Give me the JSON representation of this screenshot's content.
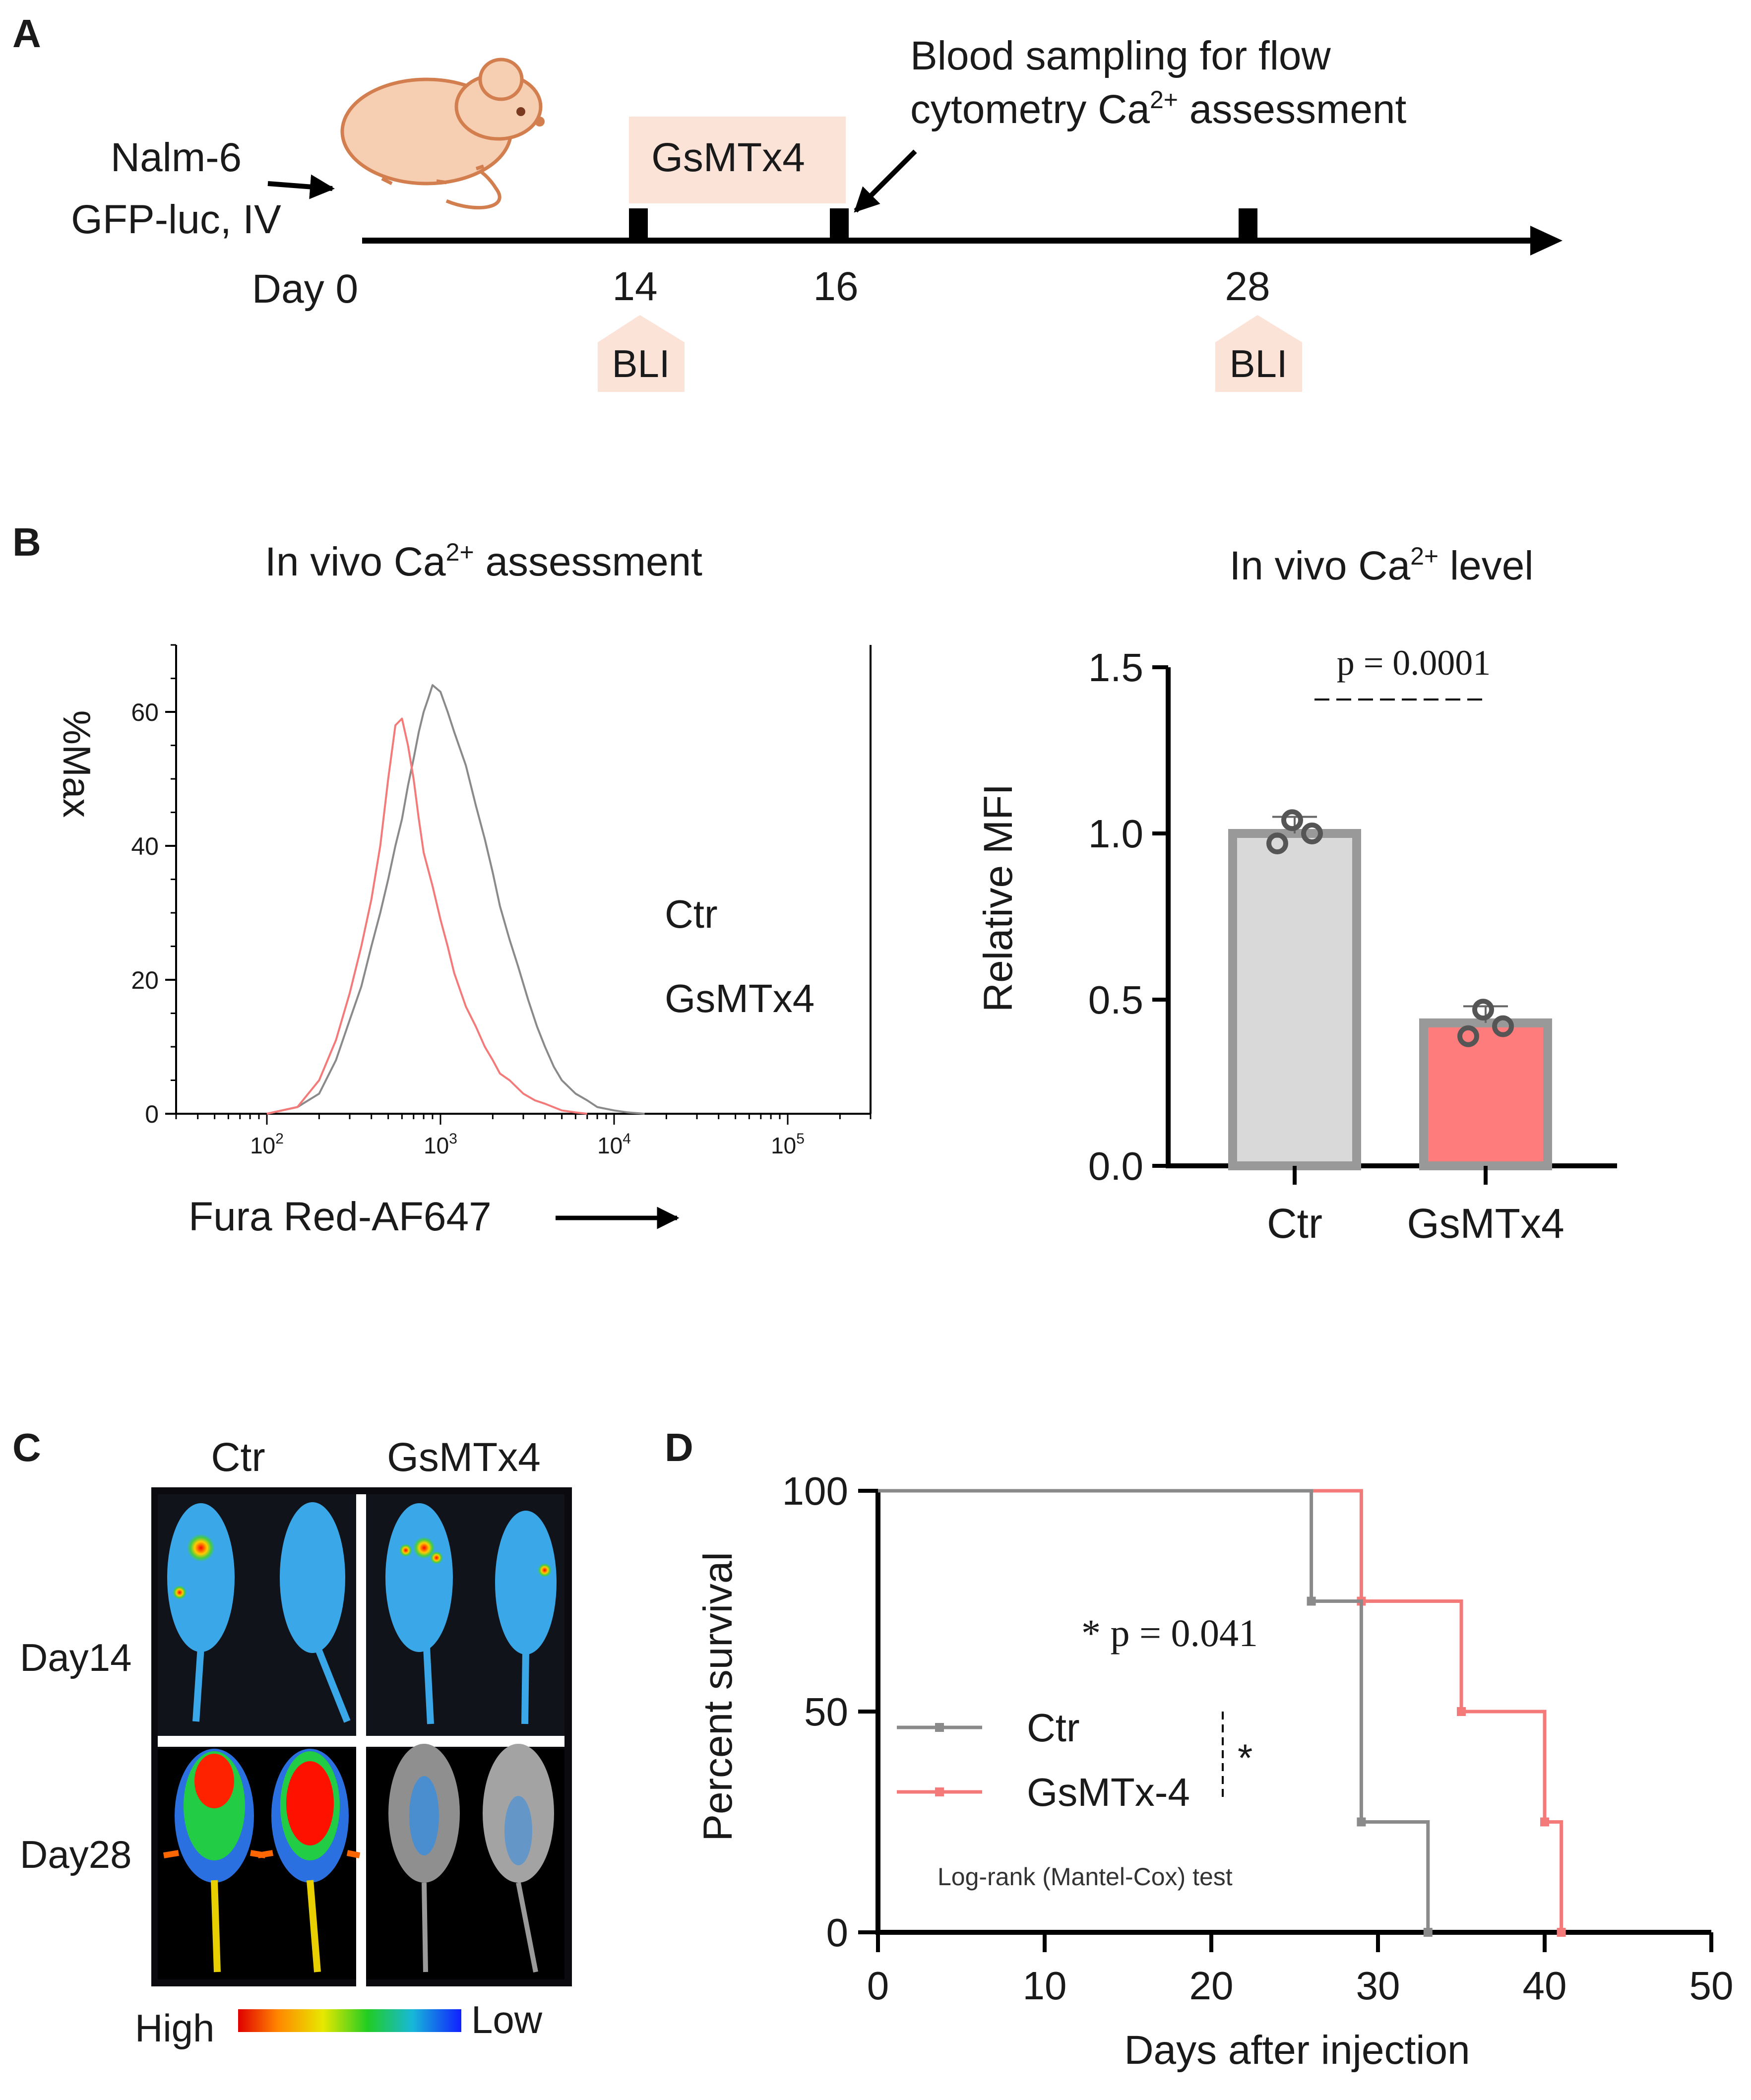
{
  "colors": {
    "ctr": "#8a8a8a",
    "gsmtx4": "#f47a7a",
    "ctr_bar_fill": "#d9d9d9",
    "gsmtx4_bar_fill": "#ff7c7c",
    "bar_edge": "#999999",
    "highlight": "#fbe3d8",
    "axis": "#000000"
  },
  "panelA": {
    "label": "A",
    "cells_line1": "Nalm-6",
    "cells_line2": "GFP-luc, IV",
    "treatment": "GsMTx4",
    "sampling_line1": "Blood sampling for flow",
    "sampling_line2_pre": "cytometry Ca",
    "sampling_line2_sup": "2+",
    "sampling_line2_post": " assessment",
    "days": [
      "Day 0",
      "14",
      "16",
      "28"
    ],
    "imaging_label": "BLI",
    "icons": [
      "mouse-icon",
      "arrow-icon"
    ]
  },
  "panelB": {
    "label": "B",
    "chart_data": [
      {
        "type": "line",
        "title_pre": "In vivo Ca",
        "title_sup": "2+",
        "title_post": " assessment",
        "xlabel": "Fura Red-AF647",
        "ylabel": "%Max",
        "x_scale": "log",
        "xlim": [
          30,
          300000
        ],
        "ylim": [
          0,
          70
        ],
        "x_ticks": [
          {
            "value": 100,
            "base": "10",
            "exp": "2"
          },
          {
            "value": 1000,
            "base": "10",
            "exp": "3"
          },
          {
            "value": 10000,
            "base": "10",
            "exp": "4"
          },
          {
            "value": 100000,
            "base": "10",
            "exp": "5"
          }
        ],
        "y_ticks": [
          0,
          20,
          40,
          60
        ],
        "legend_placement": "right",
        "series": [
          {
            "name": "Ctr",
            "x": [
              100,
              150,
              200,
              250,
              300,
              350,
              400,
              450,
              500,
              550,
              600,
              650,
              700,
              750,
              800,
              850,
              900,
              1000,
              1100,
              1200,
              1400,
              1600,
              1800,
              2000,
              2200,
              2500,
              2800,
              3200,
              3600,
              4000,
              4500,
              5000,
              6000,
              7000,
              8000,
              10000,
              12000,
              15000
            ],
            "y": [
              0,
              1,
              3,
              8,
              14,
              19,
              25,
              30,
              35,
              40,
              44,
              49,
              53,
              57,
              60,
              62,
              64,
              63,
              60,
              57,
              52,
              46,
              41,
              36,
              31,
              26,
              22,
              17,
              13,
              10,
              7,
              5,
              3,
              2,
              1,
              0.5,
              0.2,
              0
            ]
          },
          {
            "name": "GsMTx4",
            "x": [
              100,
              150,
              200,
              250,
              300,
              350,
              400,
              450,
              500,
              550,
              600,
              650,
              700,
              750,
              800,
              900,
              1000,
              1100,
              1200,
              1400,
              1600,
              1800,
              2000,
              2200,
              2500,
              3000,
              3500,
              4000,
              5000,
              6000,
              7000
            ],
            "y": [
              0,
              1,
              5,
              11,
              18,
              25,
              32,
              40,
              50,
              58,
              59,
              55,
              50,
              44,
              39,
              34,
              29,
              25,
              21,
              16,
              13,
              10,
              8,
              6,
              5,
              3,
              2,
              1.5,
              0.5,
              0.2,
              0
            ]
          }
        ]
      },
      {
        "type": "bar",
        "title_pre": "In vivo Ca",
        "title_sup": "2+",
        "title_post": " level",
        "xlabel": "",
        "ylabel": "Relative MFI",
        "categories": [
          "Ctr",
          "GsMTx4"
        ],
        "values": [
          1.0,
          0.43
        ],
        "errors": [
          0.05,
          0.05
        ],
        "points": [
          [
            1.04,
            0.97,
            1.0
          ],
          [
            0.47,
            0.39,
            0.42
          ]
        ],
        "ylim": [
          0,
          1.5
        ],
        "y_ticks": [
          "0.0",
          "0.5",
          "1.0",
          "1.5"
        ],
        "annotation": "p = 0.0001"
      }
    ]
  },
  "panelC": {
    "label": "C",
    "columns": [
      "Ctr",
      "GsMTx4"
    ],
    "rows": [
      "Day14",
      "Day28"
    ],
    "scale_high": "High",
    "scale_low": "Low"
  },
  "panelD": {
    "label": "D",
    "chart_data": {
      "type": "line",
      "xlabel": "Days after injection",
      "ylabel": "Percent survival",
      "xlim": [
        0,
        50
      ],
      "ylim": [
        0,
        100
      ],
      "x_ticks": [
        0,
        10,
        20,
        30,
        40,
        50
      ],
      "y_ticks": [
        0,
        50,
        100
      ],
      "legend_placement": "center-left",
      "annotation": "* p = 0.041",
      "significance": "*",
      "test_label": "Log-rank (Mantel-Cox) test",
      "series": [
        {
          "name": "Ctr",
          "x": [
            0,
            26,
            29,
            33
          ],
          "y": [
            100,
            75,
            25,
            0
          ]
        },
        {
          "name": "GsMTx-4",
          "x": [
            0,
            29,
            35,
            40,
            41
          ],
          "y": [
            100,
            75,
            50,
            25,
            0
          ]
        }
      ]
    }
  }
}
